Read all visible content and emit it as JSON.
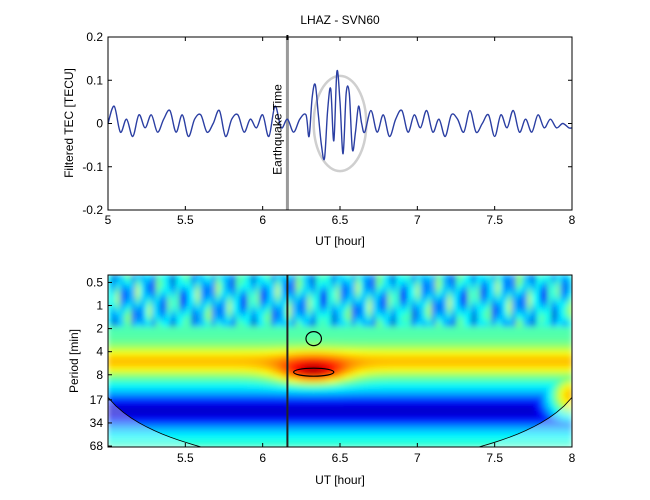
{
  "figure": {
    "title": "LHAZ - SVN60"
  },
  "chart_data": [
    {
      "type": "line",
      "title": "LHAZ - SVN60",
      "xlabel": "UT [hour]",
      "ylabel": "Filtered TEC [TECU]",
      "xlim": [
        5,
        8
      ],
      "ylim": [
        -0.2,
        0.2
      ],
      "xticks": [
        5,
        5.5,
        6,
        6.5,
        7,
        7.5,
        8
      ],
      "yticks": [
        0.2,
        0.1,
        0,
        -0.1,
        -0.2
      ],
      "xtick_labels": [
        "5",
        "5.5",
        "6",
        "6.5",
        "7",
        "7.5",
        "8"
      ],
      "ytick_labels": [
        "0.2",
        "0.1",
        "0",
        "-0.1",
        "-0.2"
      ],
      "series_color": "#2b3fa3",
      "grid": false,
      "event": {
        "x": 6.16,
        "label": "Earthquake Time",
        "color": "#9a9a9a"
      },
      "highlight_ellipse": {
        "center": [
          6.5,
          0.0
        ],
        "half_width_hours": 0.17,
        "half_height": 0.11,
        "color": "#cfcfcf"
      },
      "series": [
        {
          "x": [
            5.0,
            5.04,
            5.08,
            5.12,
            5.16,
            5.2,
            5.24,
            5.28,
            5.32,
            5.36,
            5.4,
            5.44,
            5.48,
            5.52,
            5.56,
            5.6,
            5.64,
            5.68,
            5.72,
            5.76,
            5.8,
            5.84,
            5.88,
            5.92,
            5.96,
            6.0,
            6.04,
            6.08,
            6.12,
            6.16,
            6.2,
            6.24,
            6.28,
            6.3,
            6.32,
            6.34,
            6.36,
            6.38,
            6.4,
            6.42,
            6.44,
            6.46,
            6.48,
            6.5,
            6.52,
            6.54,
            6.56,
            6.58,
            6.6,
            6.62,
            6.64,
            6.66,
            6.7,
            6.74,
            6.78,
            6.82,
            6.86,
            6.9,
            6.94,
            6.98,
            7.02,
            7.06,
            7.1,
            7.14,
            7.18,
            7.22,
            7.26,
            7.3,
            7.34,
            7.38,
            7.42,
            7.46,
            7.5,
            7.54,
            7.58,
            7.62,
            7.66,
            7.7,
            7.74,
            7.78,
            7.82,
            7.86,
            7.9,
            7.94,
            7.98,
            8.0
          ],
          "y": [
            0.0,
            0.04,
            -0.02,
            0.01,
            -0.03,
            0.02,
            -0.01,
            0.02,
            -0.02,
            0.01,
            0.03,
            -0.02,
            0.02,
            -0.03,
            0.01,
            0.02,
            -0.02,
            0.0,
            0.03,
            -0.03,
            0.01,
            0.02,
            -0.02,
            0.01,
            -0.01,
            0.02,
            -0.03,
            0.04,
            -0.01,
            0.01,
            -0.02,
            0.01,
            0.02,
            -0.03,
            0.06,
            0.09,
            0.02,
            -0.05,
            -0.08,
            0.03,
            0.08,
            -0.04,
            0.12,
            0.05,
            -0.07,
            0.07,
            0.07,
            -0.06,
            -0.02,
            0.04,
            0.0,
            -0.02,
            0.03,
            -0.02,
            0.02,
            -0.03,
            0.01,
            0.03,
            -0.02,
            0.02,
            -0.01,
            0.03,
            -0.02,
            0.01,
            -0.03,
            0.02,
            0.01,
            -0.02,
            0.03,
            -0.02,
            0.0,
            0.02,
            -0.03,
            0.02,
            -0.01,
            0.03,
            -0.02,
            0.01,
            -0.02,
            0.02,
            -0.01,
            0.01,
            -0.01,
            0.0,
            -0.01,
            -0.01
          ]
        }
      ]
    },
    {
      "type": "heatmap",
      "xlabel": "UT [hour]",
      "ylabel": "Period [min]",
      "xlim": [
        5,
        8
      ],
      "xticks": [
        5.5,
        6,
        6.5,
        7,
        7.5,
        8
      ],
      "xtick_labels": [
        "5.5",
        "6",
        "6.5",
        "7",
        "7.5",
        "8"
      ],
      "ytick_labels": [
        "0.5",
        "1",
        "2",
        "4",
        "8",
        "17",
        "34",
        "68"
      ],
      "y_scale": "log2",
      "ylim": [
        0.4,
        70
      ],
      "y_inverted": true,
      "event": {
        "x": 6.16,
        "color": "#222222"
      },
      "colormap": [
        "#00007f",
        "#0000ff",
        "#00a0ff",
        "#00ffff",
        "#7fff7f",
        "#ffff00",
        "#ff8c00",
        "#ff0000",
        "#7f0000"
      ],
      "significance_contours": [
        {
          "center": [
            6.33,
            2.7
          ],
          "half_width_hours": 0.05,
          "color": "#000000"
        },
        {
          "center": [
            6.33,
            7.4
          ],
          "half_width_hours": 0.13,
          "color": "#000000"
        }
      ],
      "cone_of_influence": {
        "color": "#000000"
      },
      "power_features": [
        {
          "name": "background",
          "level": 0.45
        },
        {
          "name": "short-period-noise",
          "period_range": [
            0.4,
            2
          ],
          "level": 0.15
        },
        {
          "name": "mid-band-ridge",
          "period": 5.5,
          "level": 0.55
        },
        {
          "name": "post-earthquake-peak",
          "center": [
            6.33,
            7.0
          ],
          "level": 0.95
        },
        {
          "name": "long-period-trough",
          "period": 24,
          "level": 0.05
        },
        {
          "name": "edge-high",
          "center": [
            8.0,
            15
          ],
          "level": 0.7
        }
      ]
    }
  ]
}
